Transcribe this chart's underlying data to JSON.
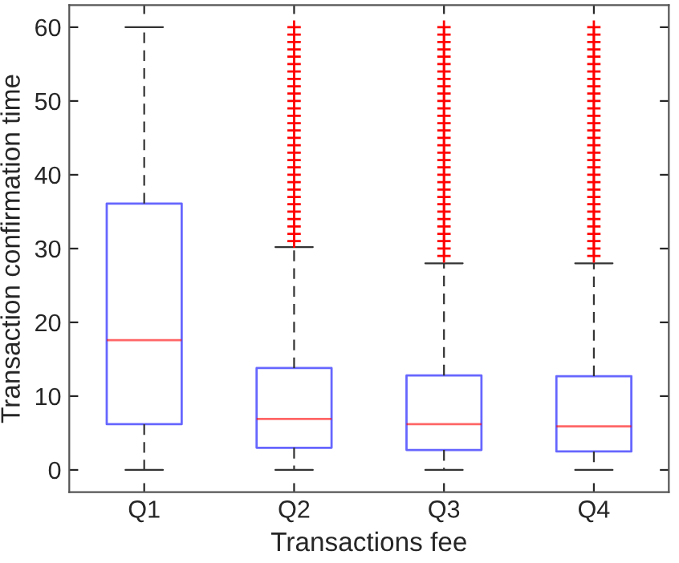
{
  "chart_data": {
    "type": "box",
    "xlabel": "Transactions fee",
    "ylabel": "Transaction confirmation time",
    "categories": [
      "Q1",
      "Q2",
      "Q3",
      "Q4"
    ],
    "ylim": [
      -3,
      63
    ],
    "yticks": [
      0,
      10,
      20,
      30,
      40,
      50,
      60
    ],
    "grid": false,
    "marker": "cross",
    "series": [
      {
        "color": "#0000ff",
        "boxes": [
          {
            "low": 0,
            "q1": 6.2,
            "median": 17.6,
            "q3": 36.1,
            "high": 60
          },
          {
            "low": 0,
            "q1": 3.0,
            "median": 6.9,
            "q3": 13.8,
            "high": 30.2,
            "outliers": [
              31,
              32,
              33,
              34,
              35,
              36,
              37,
              38,
              39,
              40,
              41,
              42,
              43,
              44,
              45,
              46,
              47,
              48,
              49,
              50,
              51,
              52,
              53,
              54,
              55,
              56,
              57,
              58,
              59,
              60
            ]
          },
          {
            "low": 0,
            "q1": 2.7,
            "median": 6.2,
            "q3": 12.8,
            "high": 28.0,
            "outliers": [
              29,
              30,
              31,
              32,
              33,
              34,
              35,
              36,
              37,
              38,
              39,
              40,
              41,
              42,
              43,
              44,
              45,
              46,
              47,
              48,
              49,
              50,
              51,
              52,
              53,
              54,
              55,
              56,
              57,
              58,
              59,
              60
            ]
          },
          {
            "low": 0,
            "q1": 2.5,
            "median": 5.9,
            "q3": 12.7,
            "high": 28.0,
            "outliers": [
              29,
              30,
              31,
              32,
              33,
              34,
              35,
              36,
              37,
              38,
              39,
              40,
              41,
              42,
              43,
              44,
              45,
              46,
              47,
              48,
              49,
              50,
              51,
              52,
              53,
              54,
              55,
              56,
              57,
              58,
              59,
              60
            ]
          }
        ]
      }
    ]
  }
}
